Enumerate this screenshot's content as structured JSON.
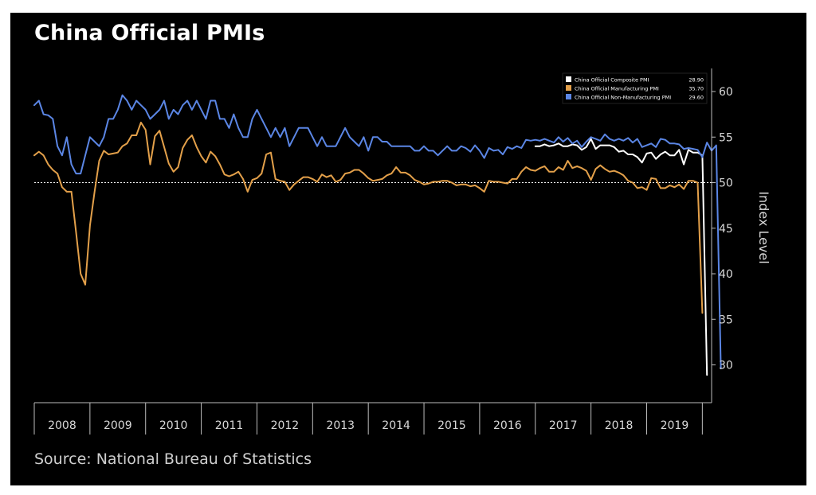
{
  "title": "China Official PMIs",
  "source": "Source: National Bureau of Statistics",
  "chart_data": {
    "type": "line",
    "title": "China Official PMIs",
    "ylabel": "Index Level",
    "xlabel": "",
    "ylim": [
      27.5,
      62.5
    ],
    "yticks": [
      "30",
      "35",
      "40",
      "45",
      "50",
      "55",
      "60"
    ],
    "x_years": [
      "2008",
      "2009",
      "2010",
      "2011",
      "2012",
      "2013",
      "2014",
      "2015",
      "2016",
      "2017",
      "2018",
      "2019"
    ],
    "x_start": "2008-01",
    "reference_line": {
      "y": 50,
      "style": "dotted",
      "color": "#ffffff"
    },
    "legend_position": "top-right",
    "grid": false,
    "series": [
      {
        "name": "China Official Composite PMI",
        "last_value": "28.90",
        "color": "#ffffff",
        "start": "2017-01",
        "values": [
          54.0,
          54.0,
          54.2,
          54.0,
          54.1,
          54.3,
          54.0,
          54.0,
          54.2,
          54.1,
          53.6,
          53.9,
          54.8,
          53.7,
          54.1,
          54.1,
          54.1,
          53.9,
          53.4,
          53.5,
          53.1,
          53.1,
          52.8,
          52.2,
          53.2,
          53.3,
          52.6,
          53.1,
          53.4,
          53.0,
          53.0,
          53.6,
          52.0,
          53.6,
          53.3,
          53.3,
          53.0,
          28.9
        ]
      },
      {
        "name": "China Official Manufacturing PMI",
        "last_value": "35.70",
        "color": "#e3a04a",
        "start": "2008-01",
        "values": [
          53.0,
          53.4,
          53.0,
          52.0,
          51.4,
          51.0,
          49.5,
          49.0,
          49.0,
          44.6,
          40.0,
          38.8,
          45.3,
          49.0,
          52.4,
          53.5,
          53.1,
          53.2,
          53.3,
          54.0,
          54.3,
          55.2,
          55.2,
          56.6,
          55.8,
          52.0,
          55.1,
          55.7,
          53.9,
          52.1,
          51.2,
          51.7,
          53.8,
          54.7,
          55.2,
          53.9,
          52.9,
          52.2,
          53.4,
          52.9,
          52.0,
          50.9,
          50.7,
          50.9,
          51.2,
          50.4,
          49.0,
          50.3,
          50.5,
          51.0,
          53.1,
          53.3,
          50.4,
          50.2,
          50.1,
          49.2,
          49.8,
          50.2,
          50.6,
          50.6,
          50.4,
          50.1,
          50.9,
          50.6,
          50.8,
          50.1,
          50.3,
          51.0,
          51.1,
          51.4,
          51.4,
          51.0,
          50.5,
          50.2,
          50.3,
          50.4,
          50.8,
          51.0,
          51.7,
          51.1,
          51.1,
          50.8,
          50.3,
          50.1,
          49.8,
          49.9,
          50.1,
          50.1,
          50.2,
          50.2,
          50.0,
          49.7,
          49.8,
          49.8,
          49.6,
          49.7,
          49.4,
          49.0,
          50.2,
          50.1,
          50.1,
          50.0,
          49.9,
          50.4,
          50.4,
          51.2,
          51.7,
          51.4,
          51.3,
          51.6,
          51.8,
          51.2,
          51.2,
          51.7,
          51.4,
          52.4,
          51.6,
          51.8,
          51.6,
          51.3,
          50.3,
          51.5,
          51.9,
          51.5,
          51.2,
          51.3,
          51.1,
          50.8,
          50.2,
          50.0,
          49.4,
          49.5,
          49.2,
          50.5,
          50.4,
          49.4,
          49.4,
          49.7,
          49.5,
          49.8,
          49.3,
          50.2,
          50.2,
          50.0,
          35.7
        ]
      },
      {
        "name": "China Official Non-Manufacturing PMI",
        "last_value": "29.60",
        "color": "#5b86e5",
        "start": "2008-01",
        "values": [
          58.5,
          59.0,
          57.5,
          57.4,
          57.0,
          54.0,
          53.0,
          55.0,
          52.0,
          51.0,
          51.0,
          53.0,
          55.0,
          54.5,
          54.0,
          55.0,
          57.0,
          57.0,
          58.0,
          59.6,
          59.0,
          58.0,
          59.0,
          58.5,
          58.0,
          57.0,
          57.5,
          58.0,
          59.0,
          57.0,
          58.0,
          57.5,
          58.5,
          59.0,
          58.0,
          59.0,
          58.0,
          57.0,
          59.0,
          59.0,
          57.0,
          57.0,
          56.0,
          57.5,
          56.0,
          55.0,
          55.0,
          57.0,
          58.0,
          57.0,
          56.0,
          55.0,
          56.0,
          55.0,
          56.0,
          54.0,
          55.0,
          56.0,
          56.0,
          56.0,
          55.0,
          54.0,
          55.0,
          54.0,
          54.0,
          54.0,
          55.0,
          56.0,
          55.0,
          54.5,
          54.0,
          55.0,
          53.5,
          55.0,
          55.0,
          54.5,
          54.5,
          54.0,
          54.0,
          54.0,
          54.0,
          54.0,
          53.5,
          53.5,
          54.0,
          53.5,
          53.5,
          53.0,
          53.5,
          54.0,
          53.5,
          53.5,
          54.0,
          53.8,
          53.4,
          54.1,
          53.5,
          52.7,
          53.8,
          53.5,
          53.6,
          53.1,
          53.9,
          53.7,
          54.0,
          53.8,
          54.7,
          54.6,
          54.7,
          54.6,
          54.8,
          54.6,
          54.4,
          55.0,
          54.5,
          54.9,
          54.3,
          54.6,
          53.9,
          54.5,
          55.0,
          54.8,
          54.6,
          55.3,
          54.8,
          54.6,
          54.8,
          54.6,
          54.9,
          54.4,
          54.8,
          53.9,
          54.1,
          54.3,
          53.9,
          54.8,
          54.7,
          54.3,
          54.3,
          54.2,
          53.7,
          53.8,
          53.7,
          53.6,
          52.8,
          54.4,
          53.5,
          54.1,
          29.6
        ]
      }
    ]
  }
}
